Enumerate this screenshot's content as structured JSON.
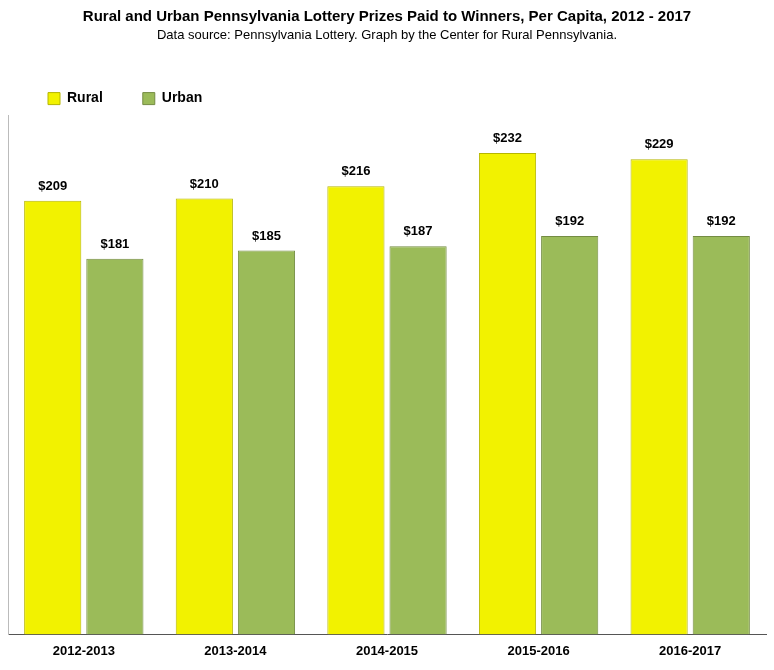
{
  "chart_data": {
    "type": "bar",
    "title": "Rural and Urban Pennsylvania Lottery Prizes Paid to Winners, Per Capita, 2012 - 2017",
    "subtitle": "Data source: Pennsylvania Lottery. Graph by the Center for Rural Pennsylvania.",
    "categories": [
      "2012-2013",
      "2013-2014",
      "2014-2015",
      "2015-2016",
      "2016-2017"
    ],
    "series": [
      {
        "name": "Rural",
        "color": "#f2f200",
        "values": [
          209,
          210,
          216,
          232,
          229
        ],
        "value_labels": [
          "$209",
          "$210",
          "$216",
          "$232",
          "$229"
        ]
      },
      {
        "name": "Urban",
        "color": "#9bbb59",
        "values": [
          181,
          185,
          187,
          192,
          192
        ],
        "value_labels": [
          "$181",
          "$185",
          "$187",
          "$192",
          "$192"
        ]
      }
    ],
    "ylim": [
      0,
      250
    ],
    "grid": false,
    "legend": "top-left",
    "data_labels": true,
    "tick_labels": "x"
  }
}
